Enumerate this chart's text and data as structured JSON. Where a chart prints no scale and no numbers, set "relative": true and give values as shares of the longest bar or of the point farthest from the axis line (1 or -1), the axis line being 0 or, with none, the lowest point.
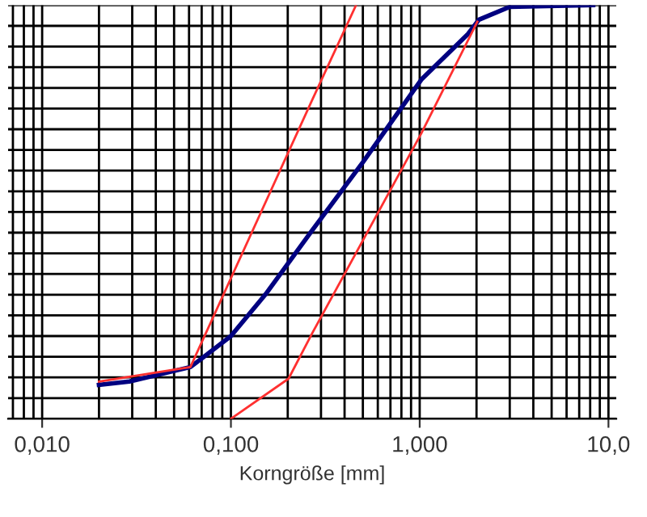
{
  "chart_data": {
    "type": "line",
    "xlabel": "Korngröße [mm]",
    "log": "x",
    "relative": true,
    "grid": true,
    "legend": false,
    "marker": "none",
    "line_style": "solid",
    "xlim": [
      0.0066,
      11
    ],
    "xticks": [
      {
        "value": 0.01,
        "label": "0,010"
      },
      {
        "value": 0.1,
        "label": "0,100"
      },
      {
        "value": 1,
        "label": "1,000"
      },
      {
        "value": 10,
        "label": "10,0"
      }
    ],
    "series": [
      {
        "color": "#000080",
        "x": [
          0.02,
          0.029,
          0.061,
          0.1,
          0.152,
          0.269,
          0.5,
          1.02,
          1.8,
          2.06,
          3.0,
          8.3
        ],
        "values": [
          0.082,
          0.09,
          0.125,
          0.2,
          0.3,
          0.455,
          0.62,
          0.82,
          0.93,
          0.965,
          0.996,
          1.0
        ]
      },
      {
        "color": "#ff3030",
        "x": [
          0.02,
          0.061,
          0.269,
          0.46
        ],
        "values": [
          0.09,
          0.125,
          0.77,
          1.0
        ]
      },
      {
        "color": "#ff3030",
        "x": [
          0.1,
          0.202,
          0.269,
          1.02,
          2.02
        ],
        "values": [
          0.0,
          0.097,
          0.206,
          0.69,
          0.96
        ]
      }
    ]
  }
}
